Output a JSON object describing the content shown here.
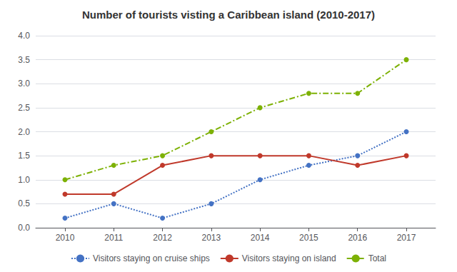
{
  "chart_data": {
    "type": "line",
    "title": "Number of tourists visting a Caribbean island (2010-2017)",
    "x": [
      2010,
      2011,
      2012,
      2013,
      2014,
      2015,
      2016,
      2017
    ],
    "xlim": [
      2009.4,
      2017.6
    ],
    "xticks": [
      2010,
      2011,
      2012,
      2013,
      2014,
      2015,
      2016,
      2017
    ],
    "ylim": [
      0,
      4
    ],
    "yticks": [
      {
        "value": 0,
        "label": "0.0"
      },
      0.5,
      {
        "value": 1.0,
        "label": "1.0"
      },
      1.5,
      {
        "value": 2.0,
        "label": "2.0"
      },
      2.5,
      {
        "value": 3.0,
        "label": "3.0"
      },
      3.5,
      {
        "value": 4.0,
        "label": "4.0"
      }
    ],
    "grid": true,
    "legend": "bottom",
    "series": [
      {
        "name": "Visitors staying on cruise ships",
        "color": "#4472c4",
        "marker": "circle",
        "line_style": "dotted",
        "values": [
          0.2,
          0.5,
          0.2,
          0.5,
          1.0,
          1.3,
          1.5,
          2.0
        ]
      },
      {
        "name": "Visitors staying on island",
        "color": "#c0392b",
        "marker": "circle",
        "line_style": "solid",
        "values": [
          0.7,
          0.7,
          1.3,
          1.5,
          1.5,
          1.5,
          1.3,
          1.5
        ]
      },
      {
        "name": "Total",
        "color": "#7db105",
        "marker": "circle",
        "line_style": "dashdot",
        "values": [
          1.0,
          1.3,
          1.5,
          2.0,
          2.5,
          2.8,
          2.8,
          3.5
        ]
      }
    ]
  }
}
